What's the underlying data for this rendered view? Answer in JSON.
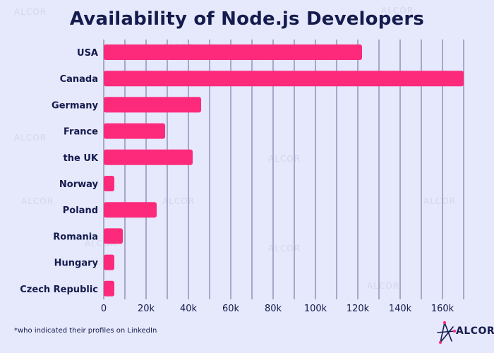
{
  "chart_data": {
    "type": "bar",
    "orientation": "horizontal",
    "title": "Availability of Node.js Developers",
    "categories": [
      "USA",
      "Canada",
      "Germany",
      "France",
      "the UK",
      "Norway",
      "Poland",
      "Romania",
      "Hungary",
      "Czech Republic"
    ],
    "values": [
      122000,
      170000,
      46000,
      29000,
      42000,
      5000,
      25000,
      9000,
      5000,
      5000
    ],
    "xlim": [
      0,
      170000
    ],
    "xticks": [
      0,
      20000,
      40000,
      60000,
      80000,
      100000,
      120000,
      140000,
      160000
    ],
    "xtick_labels": [
      "0",
      "20k",
      "40k",
      "60k",
      "80k",
      "100k",
      "120k",
      "140k",
      "160k"
    ],
    "grid": "vertical",
    "colors": {
      "bar": "#fd2a7c",
      "background": "#e6e8fb",
      "grid": "#3b3f73",
      "text": "#141b4d"
    }
  },
  "footnote": "*who indicated their profiles on LinkedIn",
  "logo": {
    "text": "ALCOR",
    "icon": "alcor-star-icon"
  }
}
